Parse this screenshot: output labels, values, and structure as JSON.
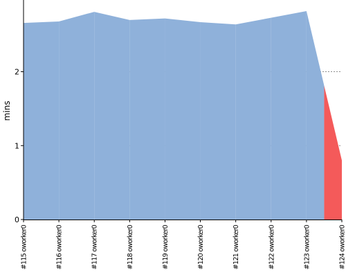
{
  "chart_data": {
    "type": "area",
    "ylabel": "mins",
    "ylim": [
      0,
      2.97
    ],
    "yticks": [
      0,
      1,
      2
    ],
    "grid": true,
    "categories": [
      "#115 oworker0",
      "#116 oworker0",
      "#117 oworker0",
      "#118 oworker0",
      "#119 oworker0",
      "#120 oworker0",
      "#121 oworker0",
      "#122 oworker0",
      "#123 oworker0",
      "#124 oworker0"
    ],
    "values": [
      2.66,
      2.68,
      2.81,
      2.7,
      2.72,
      2.67,
      2.64,
      2.73,
      2.82,
      0.8
    ],
    "colors": {
      "stable": "#8fb1da",
      "failed": "#f45a5a",
      "axis": "#000000",
      "grid": "#666666"
    },
    "status": [
      "stable",
      "stable",
      "stable",
      "stable",
      "stable",
      "stable",
      "stable",
      "stable",
      "stable",
      "failed"
    ]
  }
}
